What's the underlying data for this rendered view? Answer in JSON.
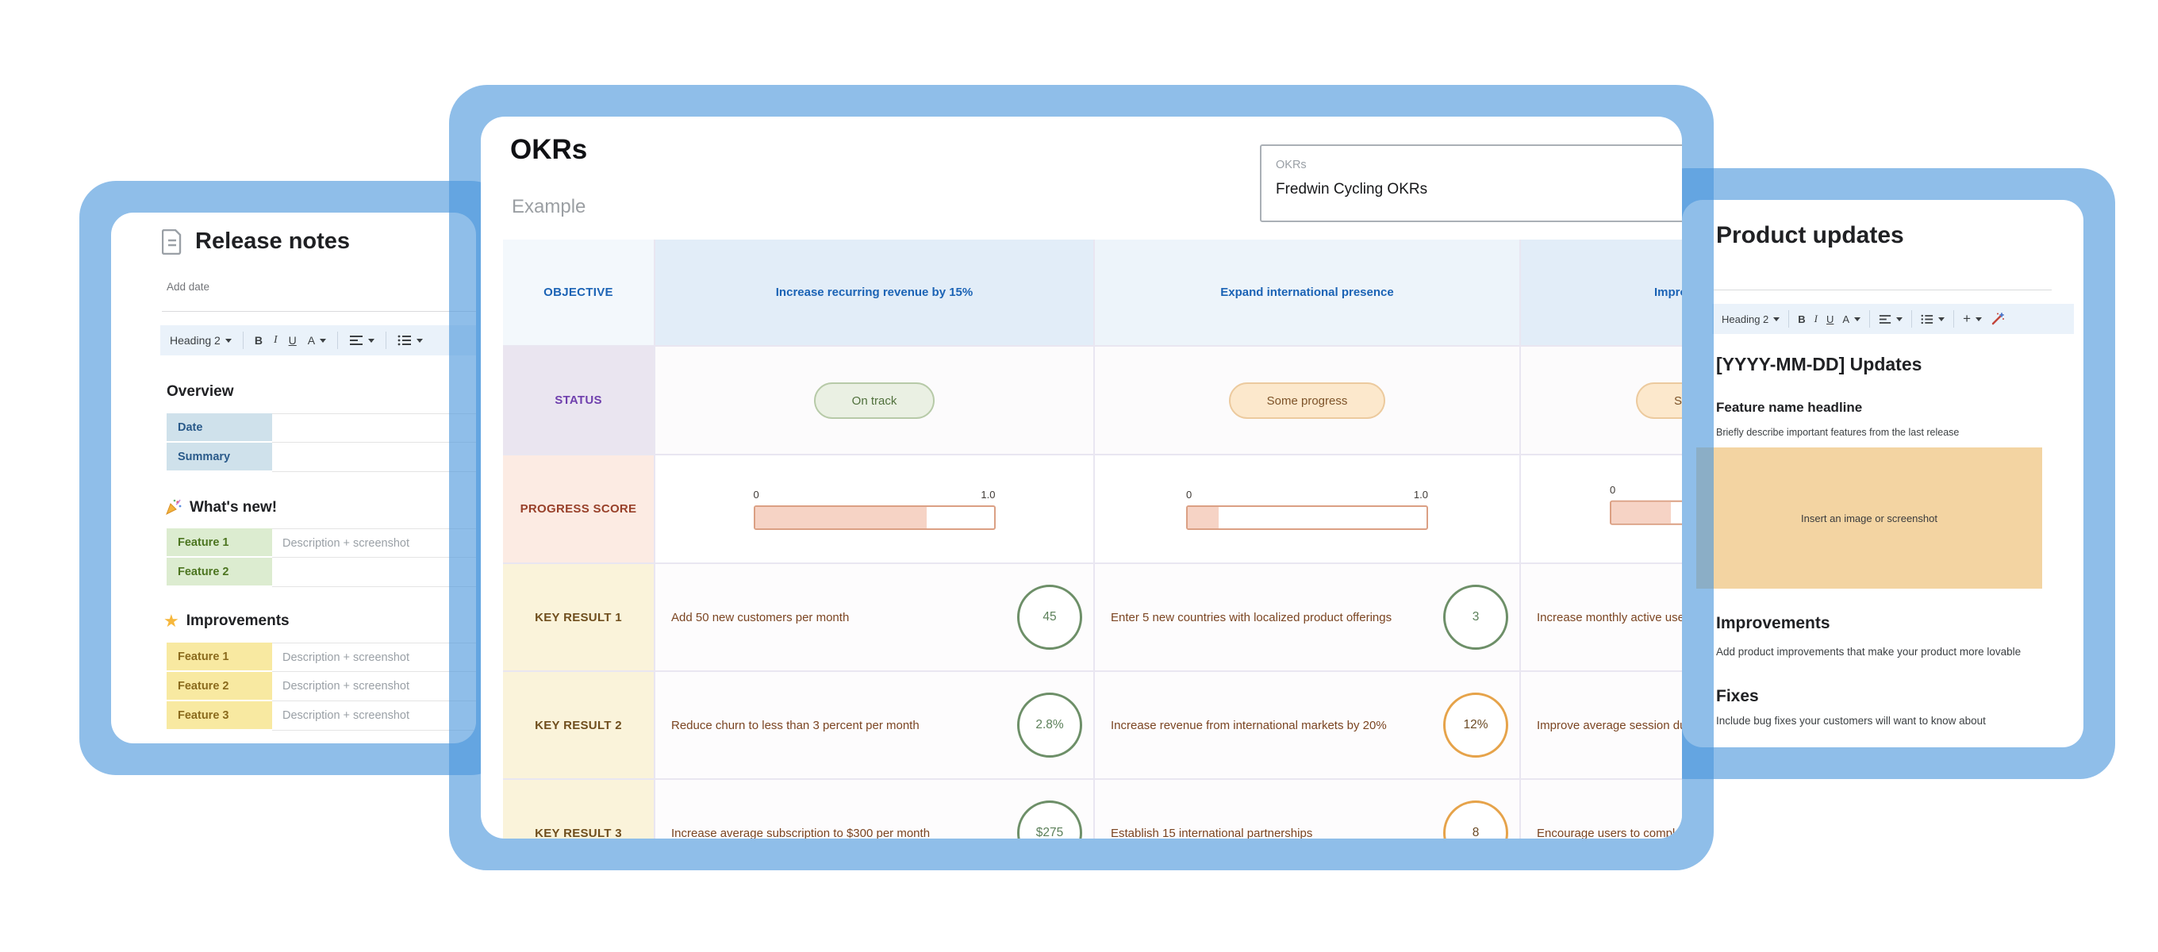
{
  "colors": {
    "frame_blue": "#4a96dc",
    "okr_header_text": "#1b63b5",
    "status_label_text": "#6f3fad",
    "progress_label_text": "#98402a",
    "key_result_text": "#7b4522",
    "green_accent": "#6d8f68",
    "orange_accent": "#e6a34a",
    "image_placeholder_bg": "#f3d4a2"
  },
  "release_card": {
    "title": "Release notes",
    "date_placeholder": "Add date",
    "toolbar": {
      "style": "Heading 2",
      "bold": "B",
      "italic": "I",
      "underline": "U",
      "text_color": "A"
    },
    "overview": {
      "heading": "Overview",
      "rows": [
        {
          "label": "Date",
          "value": ""
        },
        {
          "label": "Summary",
          "value": ""
        }
      ]
    },
    "whats_new": {
      "heading": "What's new!",
      "rows": [
        {
          "label": "Feature 1",
          "value": "Description + screenshot"
        },
        {
          "label": "Feature 2",
          "value": ""
        }
      ]
    },
    "improvements": {
      "heading": "Improvements",
      "star": "★",
      "rows": [
        {
          "label": "Feature 1",
          "value": "Description + screenshot"
        },
        {
          "label": "Feature 2",
          "value": "Description + screenshot"
        },
        {
          "label": "Feature 3",
          "value": "Description + screenshot"
        }
      ]
    }
  },
  "okr_card": {
    "title": "OKRs",
    "subtitle": "Example",
    "name_field": {
      "label": "OKRs",
      "value": "Fredwin Cycling OKRs"
    },
    "table": {
      "objective_label": "OBJECTIVE",
      "objectives": [
        "Increase recurring revenue by 15%",
        "Expand international presence",
        "Improv"
      ],
      "status_label": "STATUS",
      "statuses": [
        "On track",
        "Some progress",
        "S"
      ],
      "progress_label": "PROGRESS SCORE",
      "progress_min": "0",
      "progress_max": "1.0",
      "progress_values": [
        0.72,
        0.13,
        0.25
      ],
      "key_results": [
        {
          "label": "KEY RESULT 1",
          "items": [
            {
              "text": "Add 50 new customers per month",
              "score": "45"
            },
            {
              "text": "Enter 5 new countries with localized product offerings",
              "score": "3"
            },
            {
              "text": "Increase monthly active users",
              "score": ""
            }
          ]
        },
        {
          "label": "KEY RESULT 2",
          "items": [
            {
              "text": "Reduce churn to less than 3 percent per month",
              "score": "2.8%"
            },
            {
              "text": "Increase revenue from international markets by 20%",
              "score": "12%"
            },
            {
              "text": "Improve average session dura",
              "score": ""
            }
          ]
        },
        {
          "label": "KEY RESULT 3",
          "items": [
            {
              "text": "Increase average subscription to $300 per month",
              "score": "$275"
            },
            {
              "text": "Establish 15 international partnerships",
              "score": "8"
            },
            {
              "text": "Encourage users to complete per month",
              "score": ""
            }
          ]
        }
      ]
    }
  },
  "product_card": {
    "title": "Product updates",
    "toolbar": {
      "style": "Heading 2",
      "bold": "B",
      "italic": "I",
      "underline": "U",
      "text_color": "A",
      "insert": "+"
    },
    "updates_heading": "[YYYY-MM-DD] Updates",
    "feature_heading": "Feature name headline",
    "feature_body": "Briefly describe important features from the last release",
    "image_placeholder": "Insert an image or screenshot",
    "improvements_heading": "Improvements",
    "improvements_body": "Add product improvements that make your product more lovable",
    "fixes_heading": "Fixes",
    "fixes_body": "Include bug fixes your customers will want to know about"
  }
}
